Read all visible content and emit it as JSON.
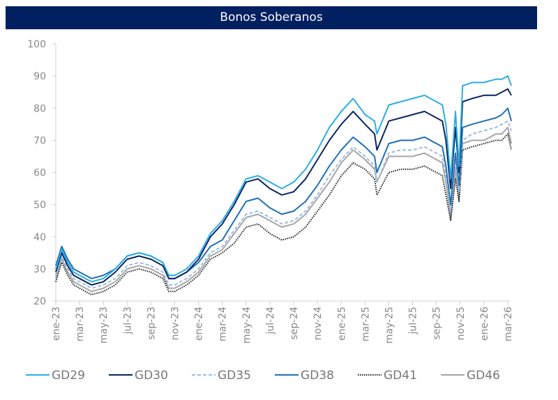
{
  "chart_data": {
    "type": "line",
    "title": "Bonos Soberanos",
    "xlabel": "",
    "ylabel": "",
    "ylim": [
      20,
      100
    ],
    "yticks": [
      "20",
      "30",
      "40",
      "50",
      "60",
      "70",
      "80",
      "90",
      "100"
    ],
    "x_unit": "months since ene-23",
    "xlim": [
      0,
      38.5
    ],
    "xtick_labels": [
      "ene-23",
      "mar-23",
      "may-23",
      "jul-23",
      "sep-23",
      "nov-23",
      "ene-24",
      "mar-24",
      "may-24",
      "jul-24",
      "sep-24",
      "nov-24",
      "ene-25",
      "mar-25",
      "may-25",
      "jul-25",
      "sep-25",
      "nov-25",
      "ene-26",
      "mar-26"
    ],
    "grid": false,
    "legend_position": "bottom",
    "x": [
      0,
      0.5,
      1,
      1.5,
      2,
      3,
      4,
      5,
      6,
      7,
      8,
      9,
      9.5,
      10,
      11,
      12,
      13,
      14,
      15,
      16,
      17,
      18,
      19,
      20,
      21,
      22,
      23,
      24,
      25,
      26,
      26.8,
      27,
      28,
      29,
      30,
      31,
      32,
      32.5,
      32.8,
      33.2,
      33.6,
      33.9,
      34.2,
      35,
      36,
      37,
      37.5,
      38,
      38.3
    ],
    "series": [
      {
        "name": "GD29",
        "color": "#29aee5",
        "dash": "solid",
        "values": [
          30,
          36,
          32,
          29,
          28,
          26,
          27,
          30,
          34,
          35,
          34,
          32,
          28,
          28,
          30,
          34,
          41,
          45,
          51,
          58,
          59,
          57,
          55,
          57,
          61,
          67,
          74,
          79,
          83,
          78,
          76,
          72,
          81,
          82,
          83,
          84,
          82,
          81,
          75,
          58,
          79,
          62,
          87,
          88,
          88,
          89,
          89,
          90,
          87
        ]
      },
      {
        "name": "GD30",
        "color": "#0b2562",
        "dash": "solid",
        "values": [
          29,
          35,
          31,
          28,
          27,
          25,
          26,
          29,
          33,
          34,
          33,
          31,
          27,
          27,
          29,
          33,
          40,
          44,
          50,
          57,
          58,
          55,
          53,
          54,
          58,
          64,
          70,
          75,
          79,
          75,
          72,
          67,
          76,
          77,
          78,
          79,
          77,
          76,
          70,
          55,
          74,
          60,
          82,
          83,
          84,
          84,
          85,
          86,
          84
        ]
      },
      {
        "name": "GD35",
        "color": "#9dbbe0",
        "dash": "dashed",
        "values": [
          28,
          34,
          30,
          27,
          26,
          24,
          25,
          27,
          31,
          32,
          31,
          29,
          25,
          25,
          27,
          30,
          35,
          37,
          42,
          47,
          48,
          46,
          44,
          45,
          48,
          53,
          59,
          64,
          68,
          65,
          62,
          57,
          66,
          67,
          67,
          68,
          66,
          65,
          59,
          48,
          63,
          54,
          70,
          72,
          73,
          74,
          75,
          76,
          73
        ]
      },
      {
        "name": "GD38",
        "color": "#1f6fb5",
        "dash": "solid",
        "values": [
          31,
          37,
          33,
          30,
          29,
          27,
          28,
          30,
          34,
          35,
          34,
          32,
          27,
          27,
          29,
          32,
          37,
          39,
          45,
          51,
          52,
          49,
          47,
          48,
          51,
          56,
          62,
          67,
          71,
          68,
          65,
          60,
          69,
          70,
          70,
          71,
          69,
          68,
          62,
          50,
          66,
          56,
          74,
          75,
          76,
          77,
          78,
          80,
          76
        ]
      },
      {
        "name": "GD41",
        "color": "#222222",
        "dash": "dotted",
        "values": [
          26,
          32,
          28,
          25,
          24,
          22,
          23,
          25,
          29,
          30,
          29,
          27,
          23,
          23,
          25,
          28,
          33,
          35,
          38,
          43,
          44,
          41,
          39,
          40,
          43,
          48,
          53,
          59,
          63,
          61,
          58,
          53,
          60,
          61,
          61,
          62,
          60,
          59,
          53,
          45,
          58,
          51,
          67,
          68,
          69,
          70,
          70,
          72,
          67
        ]
      },
      {
        "name": "GD46",
        "color": "#a6a6a6",
        "dash": "solid",
        "values": [
          27,
          33,
          29,
          26,
          25,
          23,
          24,
          26,
          30,
          31,
          30,
          28,
          24,
          24,
          26,
          29,
          34,
          36,
          41,
          46,
          47,
          45,
          43,
          44,
          47,
          52,
          57,
          63,
          67,
          64,
          61,
          57,
          65,
          65,
          65,
          66,
          64,
          63,
          57,
          46,
          61,
          52,
          69,
          70,
          70,
          72,
          72,
          74,
          69
        ]
      }
    ]
  }
}
